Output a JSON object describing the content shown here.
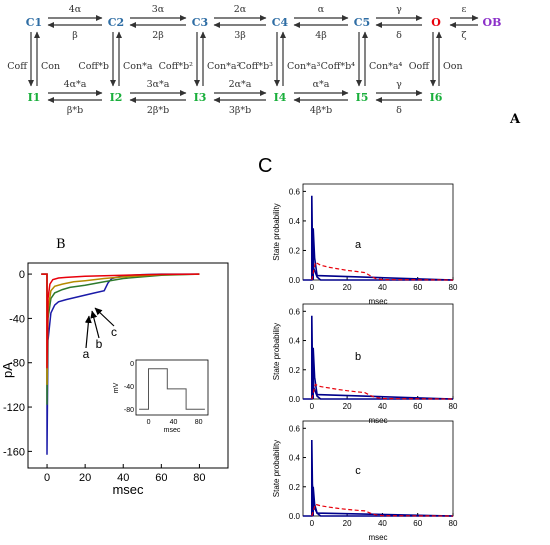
{
  "scheme": {
    "panel_label": "A",
    "top_states": [
      "C1",
      "C2",
      "C3",
      "C4",
      "C5",
      "O",
      "OB"
    ],
    "bottom_states": [
      "I1",
      "I2",
      "I3",
      "I4",
      "I5",
      "I6"
    ],
    "top_forward": [
      "4α",
      "3α",
      "2α",
      "α",
      "γ",
      "ε"
    ],
    "top_backward": [
      "β",
      "2β",
      "3β",
      "4β",
      "δ",
      "ζ"
    ],
    "bottom_forward": [
      "4α*a",
      "3α*a",
      "2α*a",
      "α*a",
      "γ"
    ],
    "bottom_backward": [
      "β*b",
      "2β*b",
      "3β*b",
      "4β*b",
      "δ"
    ],
    "vertical_down": [
      "Coff",
      "Coff*b",
      "Coff*b²",
      "Coff*b³",
      "Coff*b⁴",
      "Ooff"
    ],
    "vertical_up": [
      "Con",
      "Con*a",
      "Con*a²",
      "Con*a³",
      "Con*a⁴",
      "Oon"
    ],
    "colors": {
      "closed": "#2e6da4",
      "inactivated": "#1aaf3c",
      "open": "#e8000b",
      "blocked": "#8b2fc9",
      "rate": "#333333"
    }
  },
  "current_panel": {
    "panel_label": "B",
    "ylabel": "pA",
    "xlabel": "msec",
    "x_ticks": [
      "0",
      "20",
      "40",
      "60",
      "80"
    ],
    "y_ticks": [
      "0",
      "-40",
      "-80",
      "-120",
      "-160"
    ],
    "trace_labels": [
      "a",
      "b",
      "c"
    ],
    "inset": {
      "ylabel": "mV",
      "xlabel": "msec",
      "x_ticks": [
        "0",
        "40",
        "80"
      ],
      "y_ticks": [
        "0",
        "-40",
        "-80"
      ]
    }
  },
  "chart_data": [
    {
      "type": "line",
      "panel": "B",
      "xlabel": "msec",
      "ylabel": "pA",
      "xlim": [
        -10,
        95
      ],
      "ylim": [
        -175,
        10
      ],
      "series": [
        {
          "color": "#1a1aa8",
          "x": [
            -3,
            0,
            0,
            0.5,
            2,
            4,
            6,
            10,
            15,
            20,
            25,
            30,
            32,
            34,
            40,
            50,
            60,
            80
          ],
          "y": [
            0,
            0,
            -163,
            -60,
            -35,
            -28,
            -25,
            -23,
            -21,
            -19,
            -17,
            -15,
            -8,
            -4,
            -1.5,
            -0.5,
            0,
            0
          ]
        },
        {
          "color": "#2d7a2d",
          "x": [
            -3,
            0,
            0,
            0.5,
            2,
            4,
            8,
            12,
            20,
            30,
            40,
            60,
            80
          ],
          "y": [
            0,
            0,
            -118,
            -40,
            -22,
            -17,
            -14,
            -12,
            -10,
            -7,
            -4,
            -1,
            0
          ]
        },
        {
          "color": "#b58a00",
          "x": [
            -3,
            0,
            0,
            0.5,
            2,
            4,
            8,
            14,
            20,
            30,
            40,
            60,
            80
          ],
          "y": [
            0,
            0,
            -100,
            -32,
            -15,
            -11,
            -9,
            -7,
            -6,
            -4,
            -2.5,
            -0.5,
            0
          ]
        },
        {
          "color": "#e8000b",
          "x": [
            -3,
            0,
            0,
            0.5,
            1.5,
            3,
            6,
            10,
            20,
            30,
            40,
            60,
            80
          ],
          "y": [
            0,
            0,
            -85,
            -22,
            -9,
            -5,
            -3.5,
            -3,
            -2,
            -1.5,
            -1,
            -0.3,
            0
          ]
        }
      ],
      "inset": {
        "xlabel": "msec",
        "ylabel": "mV",
        "xlim": [
          -20,
          95
        ],
        "ylim": [
          -90,
          5
        ],
        "x": [
          -15,
          0,
          0,
          30,
          30,
          60,
          60,
          90
        ],
        "y": [
          -80,
          -80,
          -10,
          -10,
          -45,
          -45,
          -80,
          -80
        ]
      }
    },
    {
      "type": "line",
      "panel": "C",
      "label": "a",
      "xlabel": "msec",
      "ylabel": "State probability",
      "xlim": [
        -5,
        80
      ],
      "ylim": [
        0,
        0.65
      ],
      "x_ticks": [
        "0",
        "20",
        "40",
        "60",
        "80"
      ],
      "y_ticks": [
        "0.0",
        "0.2",
        "0.4",
        "0.6"
      ],
      "series": [
        {
          "color": "#00008b",
          "style": "solid",
          "x": [
            -5,
            0,
            0,
            0.3,
            1,
            3,
            5,
            80
          ],
          "y": [
            0,
            0,
            0.57,
            0.25,
            0.08,
            0.02,
            0,
            0
          ]
        },
        {
          "color": "#00008b",
          "style": "solid",
          "x": [
            0.8,
            0.8,
            1.6,
            3,
            80
          ],
          "y": [
            0,
            0.35,
            0.15,
            0.03,
            0
          ]
        },
        {
          "color": "#e8000b",
          "style": "dashed",
          "x": [
            0,
            2,
            5,
            10,
            15,
            20,
            25,
            30,
            33,
            36,
            40,
            80
          ],
          "y": [
            0,
            0.12,
            0.1,
            0.085,
            0.075,
            0.065,
            0.058,
            0.05,
            0.03,
            0.01,
            0.003,
            0
          ]
        }
      ]
    },
    {
      "type": "line",
      "panel": "C",
      "label": "b",
      "xlabel": "msec",
      "ylabel": "State probability",
      "xlim": [
        -5,
        80
      ],
      "ylim": [
        0,
        0.65
      ],
      "x_ticks": [
        "0",
        "20",
        "40",
        "60",
        "80"
      ],
      "y_ticks": [
        "0.0",
        "0.2",
        "0.4",
        "0.6"
      ],
      "series": [
        {
          "color": "#00008b",
          "style": "solid",
          "x": [
            -5,
            0,
            0,
            0.3,
            1,
            3,
            5,
            80
          ],
          "y": [
            0,
            0,
            0.57,
            0.25,
            0.08,
            0.02,
            0,
            0
          ]
        },
        {
          "color": "#00008b",
          "style": "solid",
          "x": [
            0.8,
            0.8,
            1.6,
            3,
            80
          ],
          "y": [
            0,
            0.35,
            0.15,
            0.03,
            0
          ]
        },
        {
          "color": "#e8000b",
          "style": "dashed",
          "x": [
            0,
            2,
            5,
            10,
            15,
            20,
            25,
            30,
            33,
            36,
            40,
            80
          ],
          "y": [
            0,
            0.1,
            0.085,
            0.075,
            0.065,
            0.057,
            0.05,
            0.044,
            0.025,
            0.01,
            0.003,
            0
          ]
        }
      ]
    },
    {
      "type": "line",
      "panel": "C",
      "label": "c",
      "xlabel": "msec",
      "ylabel": "State probability",
      "xlim": [
        -5,
        80
      ],
      "ylim": [
        0,
        0.65
      ],
      "x_ticks": [
        "0",
        "20",
        "40",
        "60",
        "80"
      ],
      "y_ticks": [
        "0.0",
        "0.2",
        "0.4",
        "0.6"
      ],
      "series": [
        {
          "color": "#00008b",
          "style": "solid",
          "x": [
            -5,
            0,
            0,
            0.3,
            1,
            3,
            5,
            80
          ],
          "y": [
            0,
            0,
            0.52,
            0.22,
            0.07,
            0.02,
            0,
            0
          ]
        },
        {
          "color": "#00008b",
          "style": "solid",
          "x": [
            0.8,
            0.8,
            1.6,
            3,
            80
          ],
          "y": [
            0,
            0.2,
            0.08,
            0.02,
            0
          ]
        },
        {
          "color": "#e8000b",
          "style": "dashed",
          "x": [
            0,
            2,
            5,
            10,
            15,
            20,
            25,
            30,
            33,
            36,
            40,
            80
          ],
          "y": [
            0,
            0.08,
            0.07,
            0.06,
            0.052,
            0.045,
            0.04,
            0.035,
            0.02,
            0.008,
            0.002,
            0
          ]
        }
      ]
    }
  ],
  "probability_panel": {
    "panel_label": "C"
  }
}
